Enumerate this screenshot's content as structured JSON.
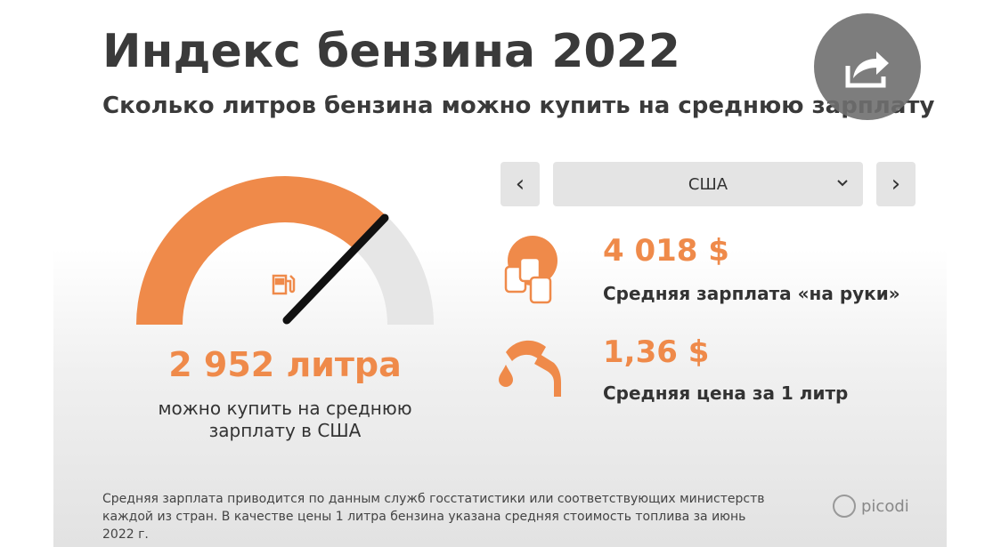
{
  "header": {
    "title": "Индекс бензина 2022",
    "subtitle": "Сколько литров бензина можно купить на среднюю зарплату"
  },
  "selector": {
    "prev": "‹",
    "country": "США",
    "next": "›"
  },
  "gauge": {
    "value": "2 952 литра",
    "caption": "можно купить на среднюю зарплату в США"
  },
  "stats": [
    {
      "value": "4 018 $",
      "label": "Средняя зарплата «на руки»"
    },
    {
      "value": "1,36 $",
      "label": "Средняя цена за 1 литр"
    }
  ],
  "footnote": "Средняя зарплата приводится по данным служб госстатистики или соответствующих министерств каждой из стран. В качестве цены 1 литра бензина указана средняя стоимость топлива за июнь 2022 г.",
  "brand": "picodi"
}
